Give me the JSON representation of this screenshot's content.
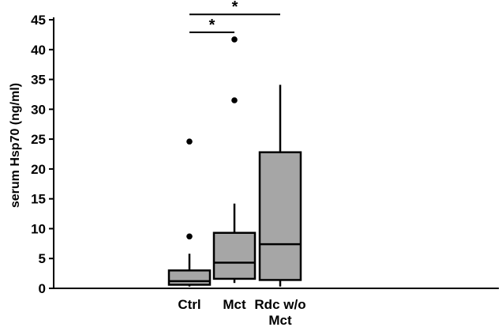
{
  "chart_data": {
    "type": "box",
    "title": "",
    "xlabel": "",
    "ylabel": "serum Hsp70 (ng/ml)",
    "ylim": [
      0,
      45
    ],
    "yticks": [
      0,
      5,
      10,
      15,
      20,
      25,
      30,
      35,
      40,
      45
    ],
    "grid": false,
    "categories": [
      {
        "label_lines": [
          "Ctrl"
        ]
      },
      {
        "label_lines": [
          "Mct"
        ]
      },
      {
        "label_lines": [
          "Rdc w/o",
          "Mct"
        ]
      }
    ],
    "boxes": [
      {
        "whisker_low": 0.3,
        "q1": 0.6,
        "median": 1.2,
        "q3": 3.0,
        "whisker_high": 5.8,
        "outliers": [
          8.7,
          24.6
        ]
      },
      {
        "whisker_low": 0.9,
        "q1": 1.6,
        "median": 4.3,
        "q3": 9.3,
        "whisker_high": 14.2,
        "outliers": [
          31.5,
          41.7
        ]
      },
      {
        "whisker_low": 0.3,
        "q1": 1.4,
        "median": 7.4,
        "q3": 22.8,
        "whisker_high": 34.1,
        "outliers": []
      }
    ],
    "significance": [
      {
        "from": 0,
        "to": 1,
        "label": "*",
        "y": 42.9
      },
      {
        "from": 0,
        "to": 2,
        "label": "*",
        "y": 45.9
      }
    ],
    "colors": {
      "box_fill": "#a6a6a6",
      "stroke": "#000000"
    }
  }
}
